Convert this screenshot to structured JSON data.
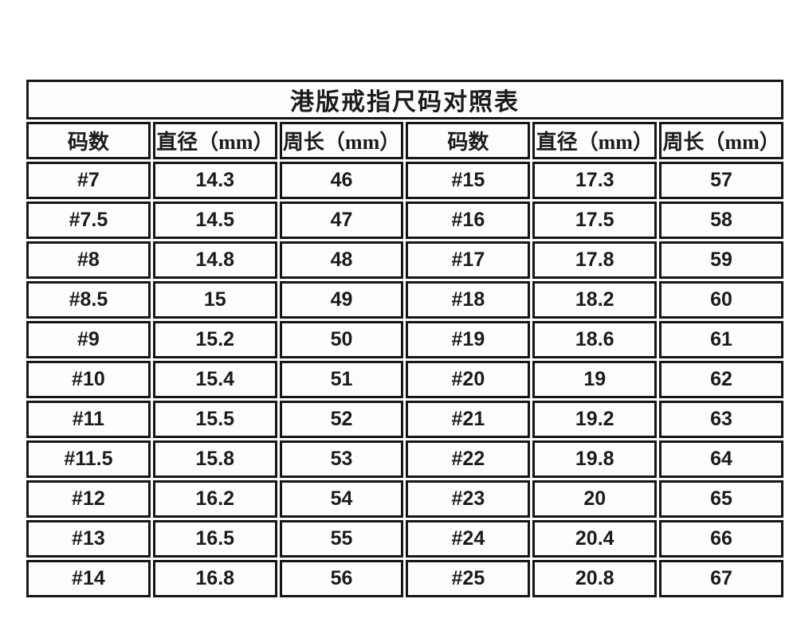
{
  "table": {
    "title": "港版戒指尺码对照表",
    "columns": [
      "码数",
      "直径（mm）",
      "周长（mm）",
      "码数",
      "直径（mm）",
      "周长（mm）"
    ],
    "rows": [
      [
        "#7",
        "14.3",
        "46",
        "#15",
        "17.3",
        "57"
      ],
      [
        "#7.5",
        "14.5",
        "47",
        "#16",
        "17.5",
        "58"
      ],
      [
        "#8",
        "14.8",
        "48",
        "#17",
        "17.8",
        "59"
      ],
      [
        "#8.5",
        "15",
        "49",
        "#18",
        "18.2",
        "60"
      ],
      [
        "#9",
        "15.2",
        "50",
        "#19",
        "18.6",
        "61"
      ],
      [
        "#10",
        "15.4",
        "51",
        "#20",
        "19",
        "62"
      ],
      [
        "#11",
        "15.5",
        "52",
        "#21",
        "19.2",
        "63"
      ],
      [
        "#11.5",
        "15.8",
        "53",
        "#22",
        "19.8",
        "64"
      ],
      [
        "#12",
        "16.2",
        "54",
        "#23",
        "20",
        "65"
      ],
      [
        "#13",
        "16.5",
        "55",
        "#24",
        "20.4",
        "66"
      ],
      [
        "#14",
        "16.8",
        "56",
        "#25",
        "20.8",
        "67"
      ]
    ],
    "colors": {
      "accent_cell_bg": "#F8DE8C",
      "value_cell_bg": "#FDFDFD",
      "border": "#161616",
      "text": "#1B1B1B",
      "page_bg": "#FFFFFF"
    }
  }
}
